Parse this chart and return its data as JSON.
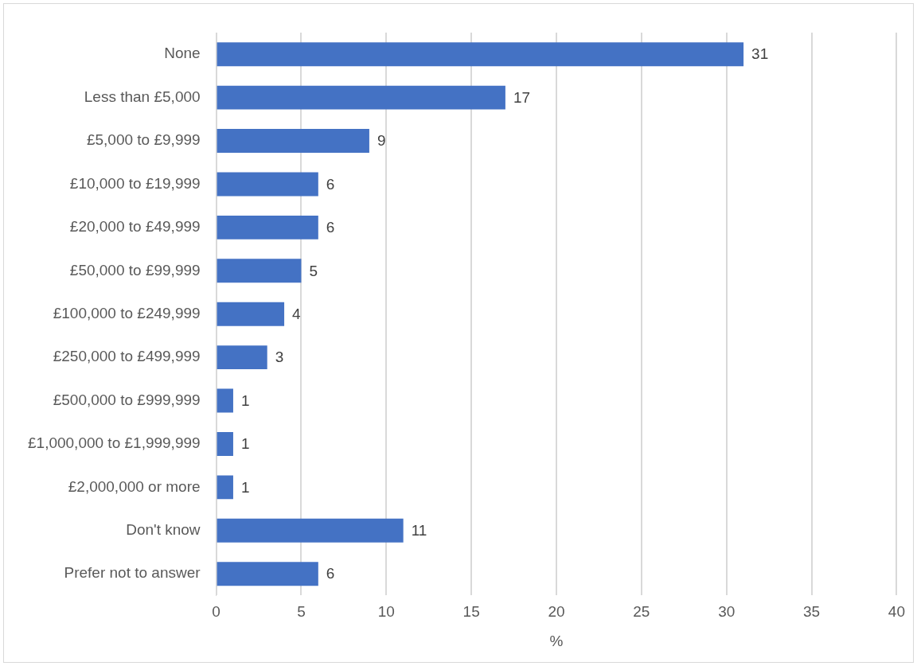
{
  "chart_data": {
    "type": "bar",
    "orientation": "horizontal",
    "xlabel": "%",
    "categories": [
      "None",
      "Less than £5,000",
      "£5,000 to £9,999",
      "£10,000 to £19,999",
      "£20,000 to £49,999",
      "£50,000 to £99,999",
      "£100,000 to £249,999",
      "£250,000 to £499,999",
      "£500,000 to £999,999",
      "£1,000,000 to £1,999,999",
      "£2,000,000 or more",
      "Don't know",
      "Prefer not to answer"
    ],
    "values": [
      31,
      17,
      9,
      6,
      6,
      5,
      4,
      3,
      1,
      1,
      1,
      11,
      6
    ],
    "color": "#4472c4",
    "data_labels": true,
    "xlim": [
      0,
      40
    ],
    "xticks": [
      0,
      5,
      10,
      15,
      20,
      25,
      30,
      35,
      40
    ],
    "grid": "x",
    "legend": false
  }
}
